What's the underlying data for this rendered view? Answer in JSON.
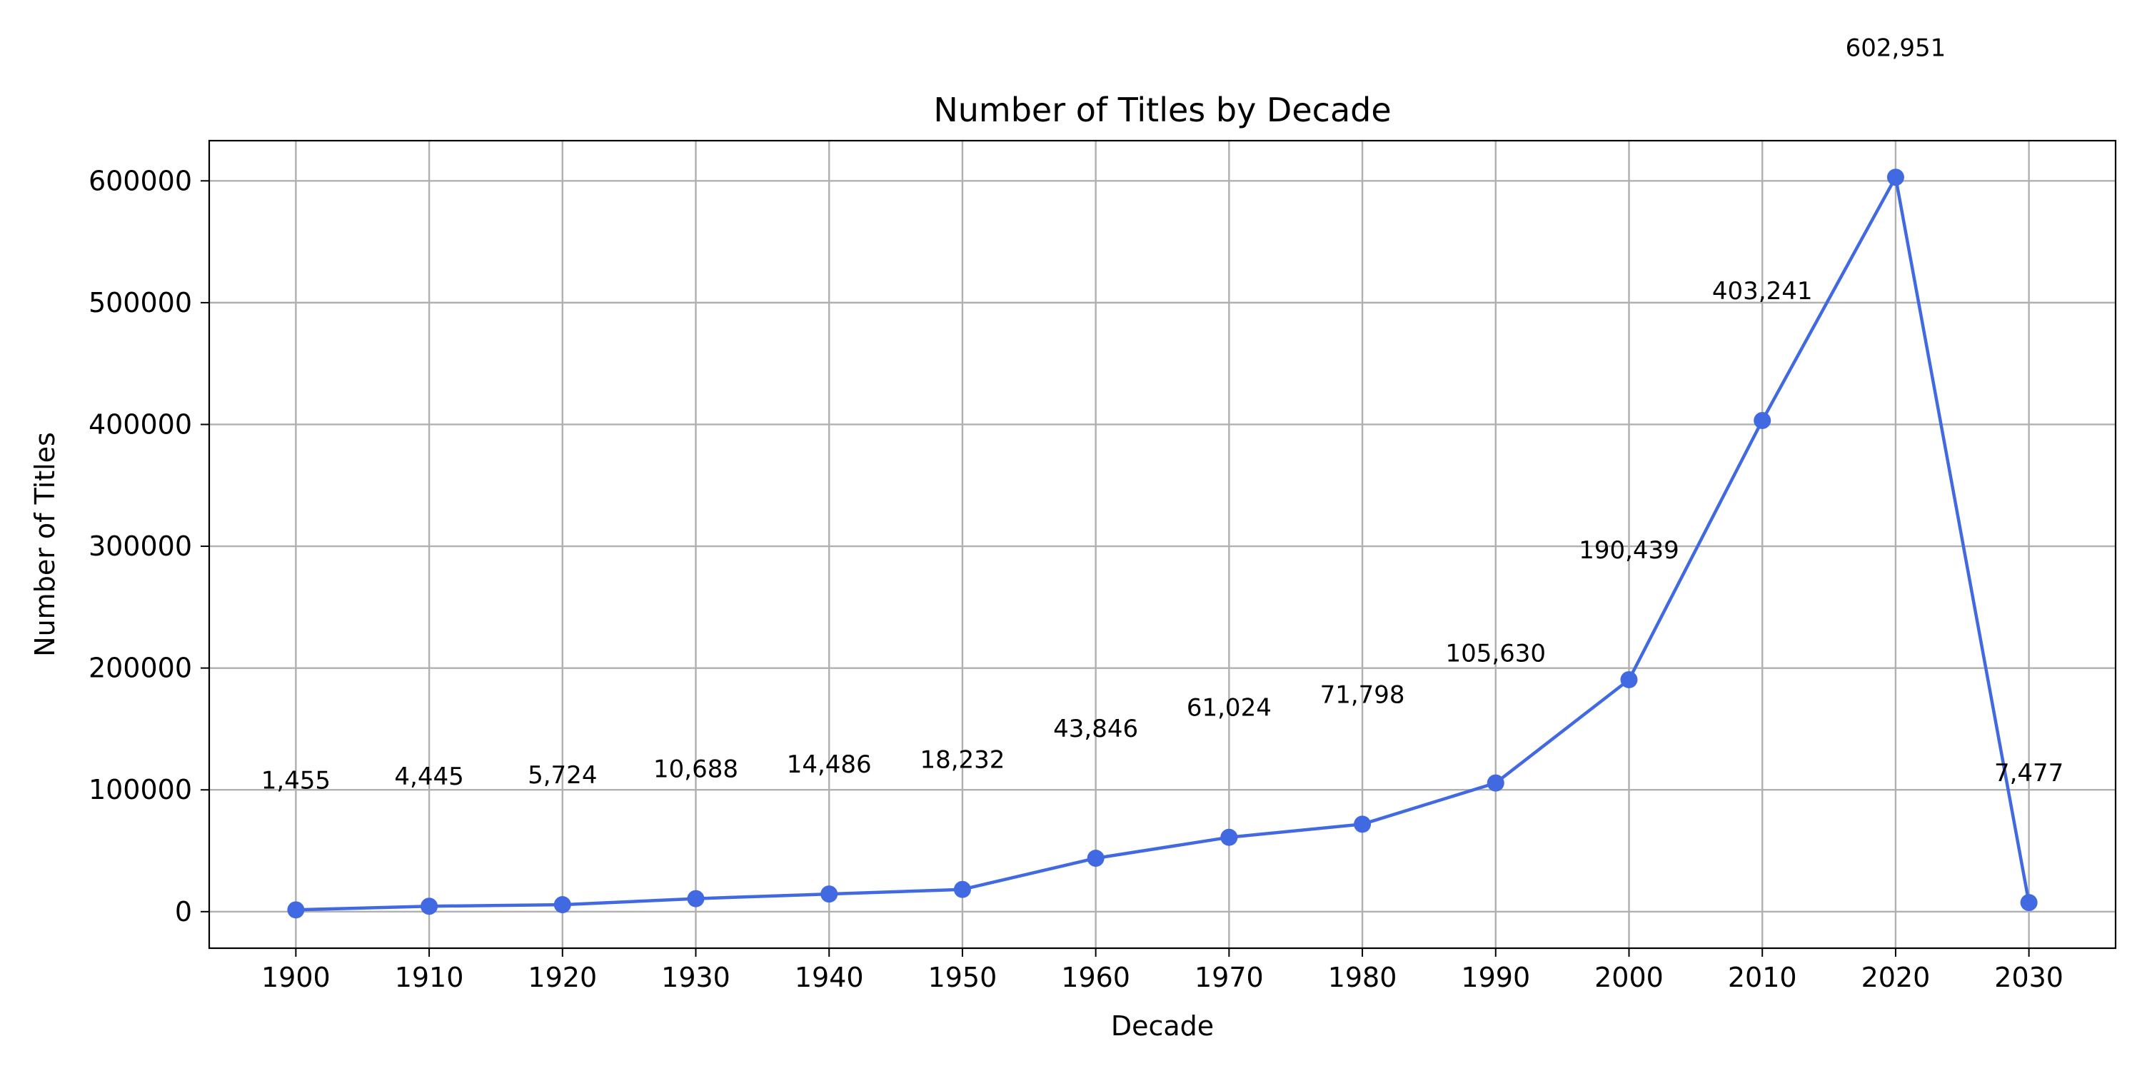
{
  "chart_data": {
    "type": "line",
    "title": "Number of Titles by Decade",
    "xlabel": "Decade",
    "ylabel": "Number of Titles",
    "x": [
      1900,
      1910,
      1920,
      1930,
      1940,
      1950,
      1960,
      1970,
      1980,
      1990,
      2000,
      2010,
      2020,
      2030
    ],
    "x_tick_labels": [
      "1900",
      "1910",
      "1920",
      "1930",
      "1940",
      "1950",
      "1960",
      "1970",
      "1980",
      "1990",
      "2000",
      "2010",
      "2020",
      "2030"
    ],
    "y_ticks": [
      0,
      100000,
      200000,
      300000,
      400000,
      500000,
      600000
    ],
    "y_tick_labels": [
      "0",
      "100000",
      "200000",
      "300000",
      "400000",
      "500000",
      "600000"
    ],
    "series": [
      {
        "values": [
          1455,
          4445,
          5724,
          10688,
          14486,
          18232,
          43846,
          61024,
          71798,
          105630,
          190439,
          403241,
          602951,
          7477
        ],
        "data_labels": [
          "1,455",
          "4,445",
          "5,724",
          "10,688",
          "14,486",
          "18,232",
          "43,846",
          "61,024",
          "71,798",
          "105,630",
          "190,439",
          "403,241",
          "602,951",
          "7,477"
        ],
        "color": "#4169e1"
      }
    ],
    "xlim": [
      1893.5,
      2036.5
    ],
    "ylim": [
      -30000,
      633000
    ],
    "grid": true,
    "grid_color": "#b0b0b0",
    "legend": "none"
  }
}
